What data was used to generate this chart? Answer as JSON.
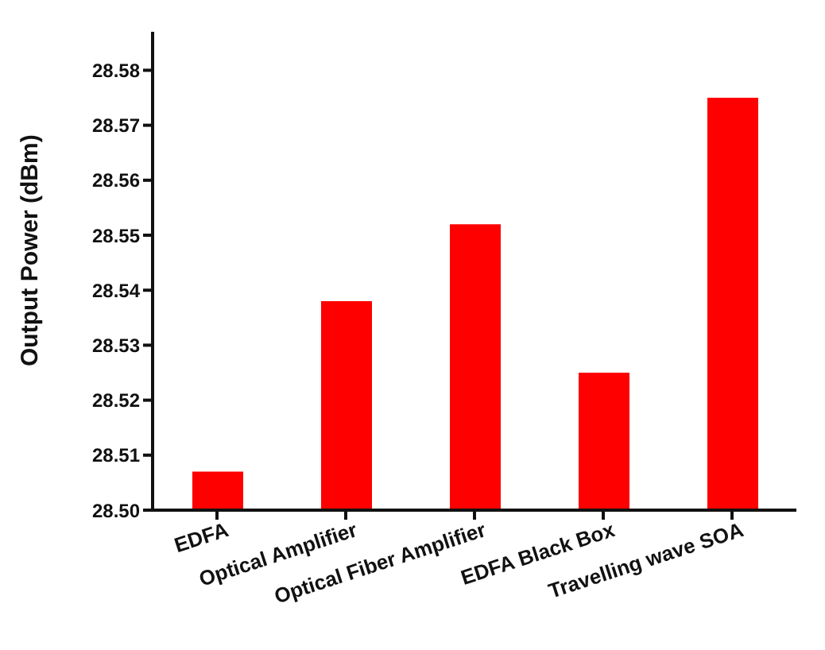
{
  "chart_data": {
    "type": "bar",
    "ylabel": "Output Power (dBm)",
    "categories": [
      "EDFA",
      "Optical Amplifier",
      "Optical Fiber Amplifier",
      "EDFA Black Box",
      "Travelling wave SOA"
    ],
    "values": [
      28.507,
      28.538,
      28.552,
      28.525,
      28.575
    ],
    "color": "#ff0000",
    "ylim": [
      28.5,
      28.587
    ],
    "yticks": [
      {
        "value": 28.5,
        "label": "28.50"
      },
      28.51,
      28.52,
      28.53,
      28.54,
      28.55,
      28.56,
      28.57,
      28.58
    ],
    "grid": false
  }
}
